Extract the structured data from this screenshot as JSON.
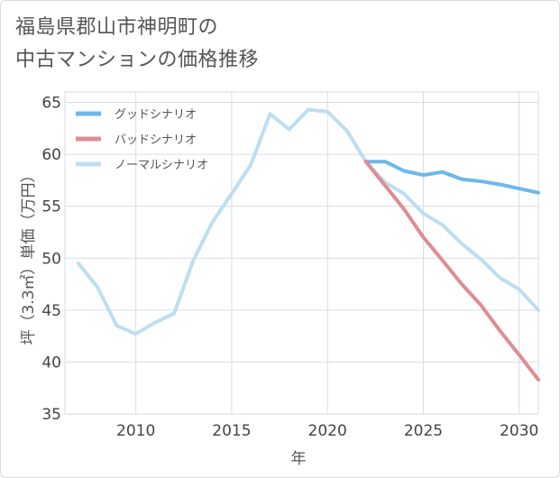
{
  "title_lines": [
    "福島県郡山市神明町の",
    "中古マンションの価格推移"
  ],
  "chart_data": {
    "type": "line",
    "xlabel": "年",
    "ylabel": "坪（3.3㎡）単価（万円）",
    "xlim": [
      2006.3,
      2031
    ],
    "ylim": [
      35,
      66
    ],
    "x_ticks": [
      2010,
      2015,
      2020,
      2025,
      2030
    ],
    "y_ticks": [
      35,
      40,
      45,
      50,
      55,
      60,
      65
    ],
    "grid": true,
    "legend_position": "top-left",
    "series": [
      {
        "name": "グッドシナリオ",
        "color": "#6cb8ec",
        "x": [
          2022,
          2023,
          2024,
          2025,
          2026,
          2027,
          2028,
          2029,
          2030,
          2031
        ],
        "y": [
          59.3,
          59.3,
          58.4,
          58.0,
          58.3,
          57.6,
          57.4,
          57.1,
          56.7,
          56.3
        ]
      },
      {
        "name": "バッドシナリオ",
        "color": "#e08c94",
        "x": [
          2022,
          2023,
          2024,
          2025,
          2026,
          2027,
          2028,
          2029,
          2030,
          2031
        ],
        "y": [
          59.3,
          57.0,
          54.7,
          52.0,
          49.8,
          47.5,
          45.5,
          43.0,
          40.7,
          38.3
        ]
      },
      {
        "name": "ノーマルシナリオ",
        "color": "#bcdff0",
        "x": [
          2007,
          2008,
          2009,
          2010,
          2011,
          2012,
          2013,
          2014,
          2015,
          2016,
          2017,
          2018,
          2019,
          2020,
          2021,
          2022,
          2023,
          2024,
          2025,
          2026,
          2027,
          2028,
          2029,
          2030,
          2031
        ],
        "y": [
          49.5,
          47.2,
          43.5,
          42.7,
          43.8,
          44.7,
          49.8,
          53.5,
          56.2,
          59.0,
          63.9,
          62.4,
          64.3,
          64.1,
          62.3,
          59.3,
          57.3,
          56.2,
          54.3,
          53.2,
          51.4,
          49.9,
          48.1,
          47.0,
          45.0
        ]
      }
    ]
  }
}
